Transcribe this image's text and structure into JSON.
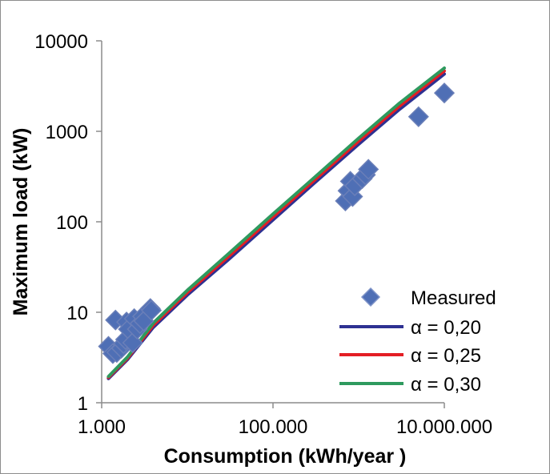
{
  "chart_data": {
    "type": "scatter",
    "title": "",
    "xlabel": "Consumption (kWh/year )",
    "ylabel": "Maximum load  (kW)",
    "xscale": "log",
    "yscale": "log",
    "xlim": [
      1000,
      10000000
    ],
    "ylim": [
      1,
      10000
    ],
    "xticks": [
      1000,
      100000,
      10000000
    ],
    "xtick_labels": [
      "1.000",
      "100.000",
      "10.000.000"
    ],
    "yticks": [
      1,
      10,
      100,
      1000,
      10000
    ],
    "ytick_labels": [
      "1",
      "10",
      "100",
      "1000",
      "10000"
    ],
    "grid": false,
    "legend_position": "bottom-right",
    "series": [
      {
        "name": "Measured",
        "kind": "marker",
        "marker": "diamond",
        "color": "#4f6fb5",
        "edge_color": "#6a7fb8",
        "points": [
          [
            1200,
            4.2
          ],
          [
            1350,
            3.5
          ],
          [
            1450,
            8.2
          ],
          [
            1500,
            3.6
          ],
          [
            1700,
            4.0
          ],
          [
            1800,
            4.5
          ],
          [
            1900,
            5.0
          ],
          [
            1950,
            7.8
          ],
          [
            2050,
            6.5
          ],
          [
            2300,
            4.6
          ],
          [
            2400,
            8.5
          ],
          [
            2600,
            6.5
          ],
          [
            2800,
            7.5
          ],
          [
            3000,
            9.0
          ],
          [
            3100,
            8.0
          ],
          [
            3700,
            11.0
          ],
          [
            3800,
            10.5
          ],
          [
            700000,
            170
          ],
          [
            750000,
            220
          ],
          [
            800000,
            280
          ],
          [
            850000,
            190
          ],
          [
            900000,
            250
          ],
          [
            1100000,
            300
          ],
          [
            1200000,
            330
          ],
          [
            1300000,
            380
          ],
          [
            5000000,
            1450
          ],
          [
            10000000,
            2650
          ]
        ]
      },
      {
        "name": "α = 0,20",
        "kind": "line",
        "color": "#2e3192",
        "points": [
          [
            1200,
            1.85
          ],
          [
            2000,
            3.0
          ],
          [
            4000,
            6.8
          ],
          [
            10000,
            15.5
          ],
          [
            30000,
            38
          ],
          [
            100000,
            105
          ],
          [
            300000,
            265
          ],
          [
            1000000,
            720
          ],
          [
            3000000,
            1750
          ],
          [
            10000000,
            4300
          ]
        ]
      },
      {
        "name": "α = 0,25",
        "kind": "line",
        "color": "#e31e24",
        "points": [
          [
            1200,
            1.9
          ],
          [
            2000,
            3.1
          ],
          [
            4000,
            7.2
          ],
          [
            10000,
            16.5
          ],
          [
            30000,
            41
          ],
          [
            100000,
            113
          ],
          [
            300000,
            285
          ],
          [
            1000000,
            780
          ],
          [
            3000000,
            1900
          ],
          [
            10000000,
            4650
          ]
        ]
      },
      {
        "name": "α = 0,30",
        "kind": "line",
        "color": "#2e9a5e",
        "points": [
          [
            1200,
            1.95
          ],
          [
            2000,
            3.2
          ],
          [
            4000,
            7.6
          ],
          [
            10000,
            17.5
          ],
          [
            30000,
            44
          ],
          [
            100000,
            122
          ],
          [
            300000,
            305
          ],
          [
            1000000,
            840
          ],
          [
            3000000,
            2050
          ],
          [
            10000000,
            5000
          ]
        ]
      }
    ]
  }
}
